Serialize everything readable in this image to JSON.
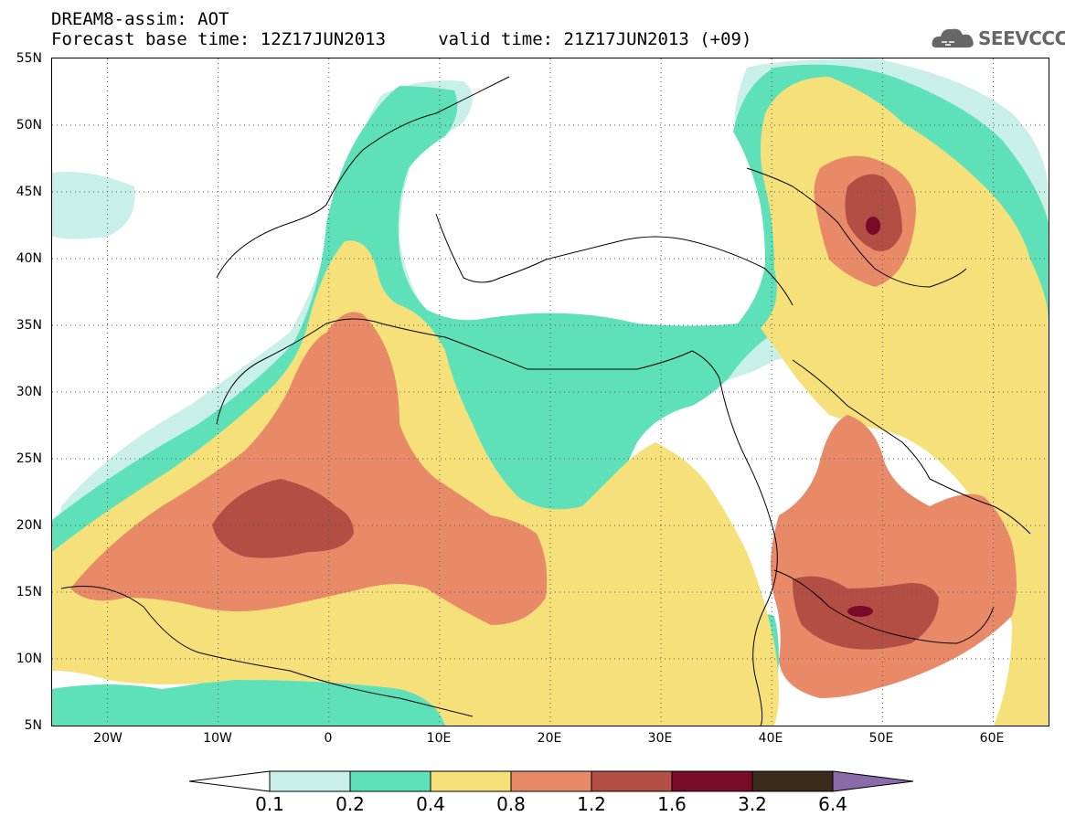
{
  "header": {
    "title": "DREAM8-assim: AOT",
    "subtitle": "Forecast base time: 12Z17JUN2013     valid time: 21Z17JUN2013 (+09)"
  },
  "logo": {
    "text": "SEEVCCC",
    "icon": "cloud-icon"
  },
  "map": {
    "lat_labels": [
      "55N",
      "50N",
      "45N",
      "40N",
      "35N",
      "30N",
      "25N",
      "20N",
      "15N",
      "10N",
      "5N"
    ],
    "lon_labels": [
      "20W",
      "10W",
      "0",
      "10E",
      "20E",
      "30E",
      "40E",
      "50E",
      "60E"
    ],
    "lat_range": [
      5,
      55
    ],
    "lon_range": [
      -25,
      65
    ],
    "grid": "dotted"
  },
  "colorbar": {
    "labels": [
      "0.1",
      "0.2",
      "0.4",
      "0.8",
      "1.2",
      "1.6",
      "3.2",
      "6.4"
    ],
    "colors": [
      "#ffffff",
      "#c8f0e8",
      "#5ee0b8",
      "#f5e07a",
      "#e88a68",
      "#b24e44",
      "#7a0a2a",
      "#3a2a1a",
      "#8a6aa8"
    ]
  }
}
